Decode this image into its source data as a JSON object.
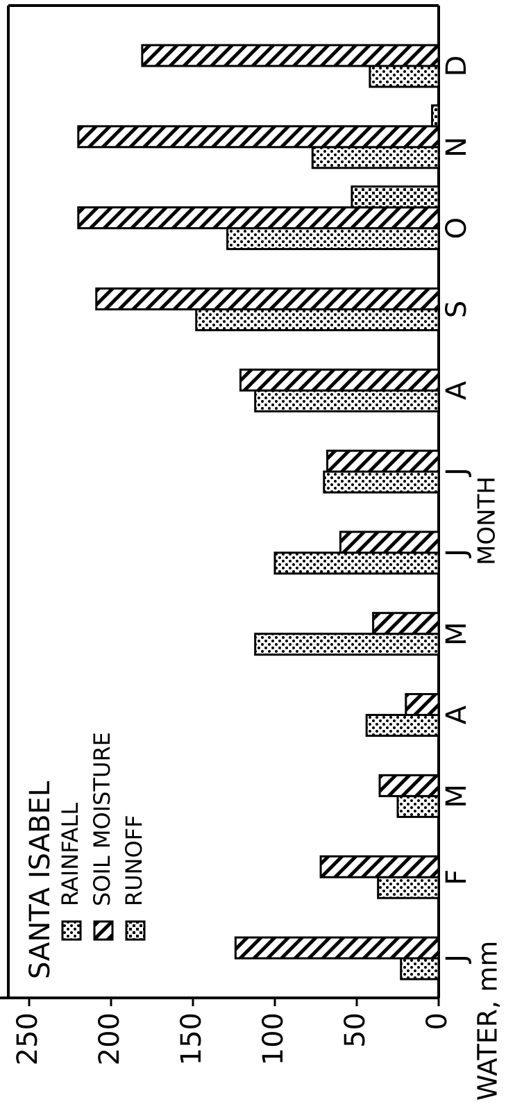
{
  "chart_data": {
    "type": "bar",
    "title": "SANTA ISABEL",
    "x_label": "MONTH",
    "y_label": "WATER, mm",
    "categories": [
      "J",
      "F",
      "M",
      "A",
      "M",
      "J",
      "J",
      "A",
      "S",
      "O",
      "N",
      "D"
    ],
    "series": [
      {
        "name": "RAINFALL",
        "color": "#000000",
        "values": [
          23,
          37,
          25,
          44,
          112,
          100,
          70,
          112,
          148,
          129,
          77,
          42
        ]
      },
      {
        "name": "SOIL MOISTURE",
        "color": "#000000",
        "values": [
          124,
          72,
          36,
          20,
          40,
          60,
          68,
          121,
          209,
          220,
          220,
          181
        ]
      },
      {
        "name": "RUNOFF",
        "color": "#000000",
        "values": [
          null,
          null,
          null,
          null,
          null,
          null,
          null,
          null,
          null,
          53,
          4,
          null
        ]
      }
    ],
    "ylim": [
      0,
      250
    ],
    "yticks": [
      0,
      50,
      100,
      150,
      200,
      250
    ]
  }
}
